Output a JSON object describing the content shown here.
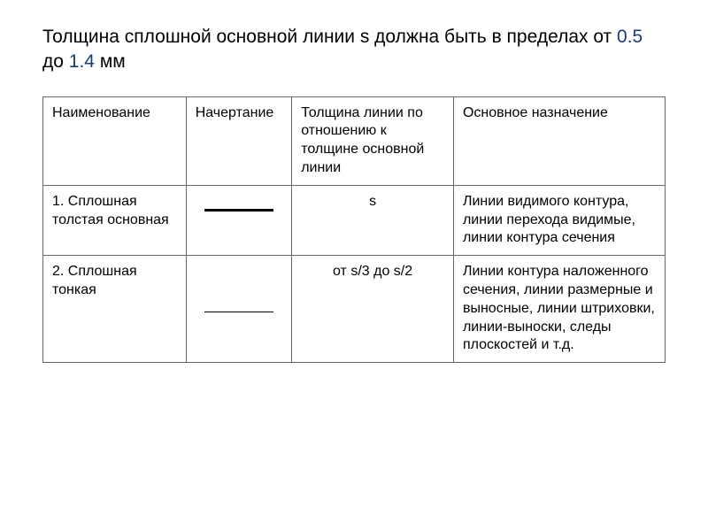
{
  "heading": {
    "part1": "Толщина сплошной основной линии s должна быть в пределах от ",
    "accent1": "0.5",
    "part2": " до ",
    "accent2": "1.4",
    "part3": " мм"
  },
  "table": {
    "header": {
      "col1": "Наименование",
      "col2": "Начертание",
      "col3": "Толщина линии по отношению к толщине основной линии",
      "col4": "Основное назначение"
    },
    "rows": [
      {
        "name": "1. Сплошная толстая основная",
        "line_type": "thick",
        "thickness": "s",
        "purpose": "Линии видимого контура, линии перехода видимые, линии контура сечения"
      },
      {
        "name": "2. Сплошная тонкая",
        "line_type": "thin",
        "thickness": "от s/3 до s/2",
        "purpose": "Линии контура наложенного сечения, линии размерные и выносные, линии штриховки, линии-выноски, следы плоскостей и т.д."
      }
    ]
  },
  "styling": {
    "background_color": "#ffffff",
    "text_color": "#000000",
    "accent_color": "#1a3a7a",
    "border_color": "#666666",
    "heading_fontsize": 21,
    "cell_fontsize": 16,
    "thick_line_width": 3,
    "thin_line_width": 1
  }
}
